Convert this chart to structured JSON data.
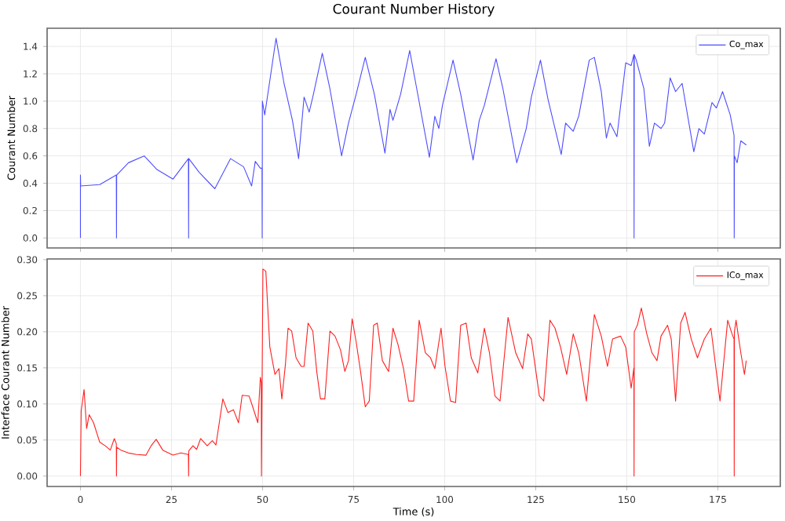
{
  "chart_data": [
    {
      "type": "line",
      "title": "Courant Number History",
      "ylabel": "Courant Number",
      "x": [
        0,
        0,
        0.05,
        5.3,
        9.85,
        9.9,
        9.95,
        13.2,
        17.5,
        21,
        25.4,
        29.65,
        29.7,
        29.75,
        32.6,
        36.9,
        41.2,
        44.8,
        47,
        48,
        49.4,
        49.85,
        49.9,
        49.95,
        50.6,
        52,
        53.7,
        55.9,
        58.2,
        59.9,
        61.4,
        62.8,
        63.8,
        66.4,
        68.5,
        71.7,
        73.6,
        75.7,
        78.2,
        80.7,
        83.6,
        85,
        85.8,
        87.9,
        90.4,
        92.2,
        95.8,
        97.3,
        98.4,
        99.4,
        102.3,
        104.4,
        107.8,
        109.5,
        110.9,
        114.1,
        116,
        119.8,
        122.4,
        123.8,
        126.3,
        128.4,
        132,
        133.2,
        135.3,
        136.8,
        139.7,
        141.1,
        143,
        144.4,
        145.4,
        147.3,
        149.7,
        151.2,
        151.95,
        152,
        152.05,
        152.6,
        154.7,
        156.2,
        157.6,
        159.4,
        160.4,
        161.9,
        163.4,
        165.2,
        168.4,
        169.8,
        171.3,
        173.4,
        174.6,
        176.3,
        178.4,
        179.45,
        179.5,
        179.55,
        180.3,
        181.3,
        182.8
      ],
      "series": [
        {
          "name": "Co_max",
          "color": "#4d4dff",
          "values": [
            0,
            0.46,
            0.38,
            0.39,
            0.46,
            0,
            0.46,
            0.55,
            0.6,
            0.5,
            0.43,
            0.58,
            0,
            0.58,
            0.48,
            0.36,
            0.58,
            0.52,
            0.38,
            0.56,
            0.51,
            0.51,
            0,
            1.0,
            0.9,
            1.15,
            1.46,
            1.13,
            0.86,
            0.58,
            1.03,
            0.92,
            1.03,
            1.35,
            1.09,
            0.6,
            0.84,
            1.05,
            1.32,
            1.05,
            0.62,
            0.94,
            0.86,
            1.05,
            1.37,
            1.11,
            0.59,
            0.89,
            0.8,
            0.97,
            1.3,
            1.05,
            0.57,
            0.86,
            0.97,
            1.31,
            1.09,
            0.55,
            0.8,
            1.03,
            1.3,
            1.01,
            0.61,
            0.84,
            0.78,
            0.89,
            1.3,
            1.32,
            1.07,
            0.73,
            0.84,
            0.74,
            1.28,
            1.26,
            1.34,
            0,
            1.34,
            1.3,
            1.09,
            0.67,
            0.84,
            0.8,
            0.84,
            1.17,
            1.07,
            1.13,
            0.63,
            0.8,
            0.76,
            0.99,
            0.95,
            1.07,
            0.9,
            0.75,
            0,
            0.6,
            0.55,
            0.71,
            0.68
          ]
        }
      ],
      "xlim": [
        -9.15,
        192.15
      ],
      "xticks": [
        0,
        25,
        50,
        75,
        100,
        125,
        150,
        175
      ],
      "ylim": [
        -0.073,
        1.533
      ],
      "yticks": [
        {
          "value": 0,
          "label": "0.0"
        },
        {
          "value": 0.2,
          "label": "0.2"
        },
        {
          "value": 0.4,
          "label": "0.4"
        },
        {
          "value": 0.6,
          "label": "0.6"
        },
        {
          "value": 0.8,
          "label": "0.8"
        },
        {
          "value": 1.0,
          "label": "1.0"
        },
        {
          "value": 1.2,
          "label": "1.2"
        },
        {
          "value": 1.4,
          "label": "1.4"
        }
      ],
      "grid": true,
      "legend": "top right",
      "tick_labels": "y"
    },
    {
      "type": "line",
      "xlabel": "Time (s)",
      "ylabel": "Interface Courant Number",
      "x": [
        0,
        0.2,
        1.0,
        1.7,
        2.4,
        3.6,
        5.3,
        6.8,
        8.2,
        9.3,
        9.85,
        9.9,
        9.95,
        11.1,
        13.2,
        15.4,
        18,
        19.4,
        20.8,
        22.6,
        25.4,
        27.6,
        29.65,
        29.7,
        29.75,
        30.9,
        31.9,
        33,
        34.8,
        36.2,
        37.2,
        39.1,
        40.5,
        42,
        43.4,
        44.4,
        46.3,
        47.3,
        48.7,
        49.4,
        49.65,
        49.7,
        50.1,
        50.9,
        52,
        53.4,
        54.5,
        55.3,
        56.3,
        57,
        58,
        59.2,
        60.6,
        61.4,
        62.5,
        63.8,
        64.9,
        65.9,
        67.1,
        68.5,
        69.9,
        71.4,
        72.6,
        73.6,
        74.6,
        75.7,
        76.9,
        78.2,
        79.3,
        80.5,
        81.5,
        82.9,
        84.6,
        85.8,
        87.2,
        88.7,
        90.1,
        91.5,
        93,
        94.7,
        96.1,
        97.3,
        99,
        100.1,
        101.6,
        103,
        104.4,
        105.9,
        107.3,
        109.1,
        110.9,
        112.3,
        113.8,
        115.2,
        117.4,
        119.5,
        121.4,
        122.8,
        123.8,
        126,
        127.2,
        128.9,
        130.3,
        131.8,
        133.5,
        135.3,
        136.8,
        138.9,
        141.1,
        143,
        144.7,
        146.1,
        148.3,
        149.7,
        151.2,
        151.95,
        152,
        152.05,
        152.9,
        154,
        155.5,
        156.9,
        158.3,
        159.4,
        161.2,
        162.2,
        163.4,
        164.8,
        166,
        167.7,
        169.4,
        171.3,
        173.1,
        175.6,
        177.7,
        178.9,
        179.45,
        179.5,
        179.55,
        180,
        181.3,
        182.3,
        182.8
      ],
      "series": [
        {
          "name": "ICo_max",
          "color": "#ff2020",
          "values": [
            0,
            0.09,
            0.12,
            0.066,
            0.085,
            0.074,
            0.047,
            0.042,
            0.036,
            0.052,
            0.045,
            0,
            0.04,
            0.036,
            0.032,
            0.03,
            0.029,
            0.042,
            0.051,
            0.036,
            0.029,
            0.032,
            0.03,
            0,
            0.035,
            0.042,
            0.037,
            0.052,
            0.042,
            0.049,
            0.043,
            0.107,
            0.088,
            0.092,
            0.074,
            0.112,
            0.111,
            0.096,
            0.074,
            0.137,
            0.13,
            0,
            0.287,
            0.284,
            0.179,
            0.141,
            0.149,
            0.107,
            0.156,
            0.205,
            0.201,
            0.164,
            0.152,
            0.152,
            0.212,
            0.201,
            0.144,
            0.107,
            0.107,
            0.201,
            0.194,
            0.175,
            0.145,
            0.16,
            0.218,
            0.186,
            0.145,
            0.096,
            0.104,
            0.209,
            0.212,
            0.16,
            0.145,
            0.205,
            0.182,
            0.149,
            0.104,
            0.104,
            0.216,
            0.171,
            0.164,
            0.149,
            0.205,
            0.152,
            0.104,
            0.102,
            0.209,
            0.212,
            0.164,
            0.143,
            0.205,
            0.171,
            0.111,
            0.104,
            0.22,
            0.171,
            0.149,
            0.197,
            0.19,
            0.111,
            0.104,
            0.216,
            0.205,
            0.179,
            0.141,
            0.197,
            0.171,
            0.104,
            0.224,
            0.194,
            0.152,
            0.19,
            0.194,
            0.179,
            0.122,
            0.15,
            0,
            0.2,
            0.209,
            0.233,
            0.197,
            0.171,
            0.16,
            0.194,
            0.209,
            0.19,
            0.104,
            0.212,
            0.227,
            0.19,
            0.164,
            0.19,
            0.205,
            0.104,
            0.216,
            0.197,
            0.19,
            0,
            0.2,
            0.216,
            0.171,
            0.141,
            0.16
          ]
        }
      ],
      "xlim": [
        -9.15,
        192.15
      ],
      "xticks": [
        0,
        25,
        50,
        75,
        100,
        125,
        150,
        175
      ],
      "ylim": [
        -0.0144,
        0.301
      ],
      "yticks": [
        {
          "value": 0,
          "label": "0.00"
        },
        {
          "value": 0.05,
          "label": "0.05"
        },
        {
          "value": 0.1,
          "label": "0.10"
        },
        {
          "value": 0.15,
          "label": "0.15"
        },
        {
          "value": 0.2,
          "label": "0.20"
        },
        {
          "value": 0.25,
          "label": "0.25"
        },
        {
          "value": 0.3,
          "label": "0.30"
        }
      ],
      "grid": true,
      "legend": "top right"
    }
  ]
}
